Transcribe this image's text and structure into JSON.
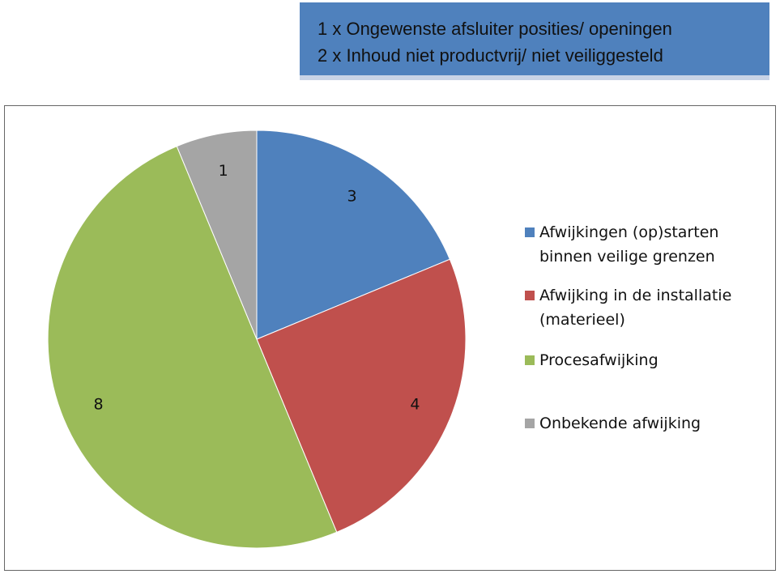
{
  "chart_data": {
    "type": "pie",
    "annotation": [
      "1 x Ongewenste afsluiter posities/ openingen",
      "2 x Inhoud niet productvrij/ niet veiliggesteld"
    ],
    "categories": [
      "Afwijkingen (op)starten binnen veilige grenzen",
      "Afwijking in de installatie (materieel)",
      "Procesafwijking",
      "Onbekende afwijking"
    ],
    "values": [
      3,
      4,
      8,
      1
    ],
    "colors": [
      "#4f81bd",
      "#c0504d",
      "#9bbb59",
      "#a5a5a5"
    ],
    "legend": "right"
  }
}
